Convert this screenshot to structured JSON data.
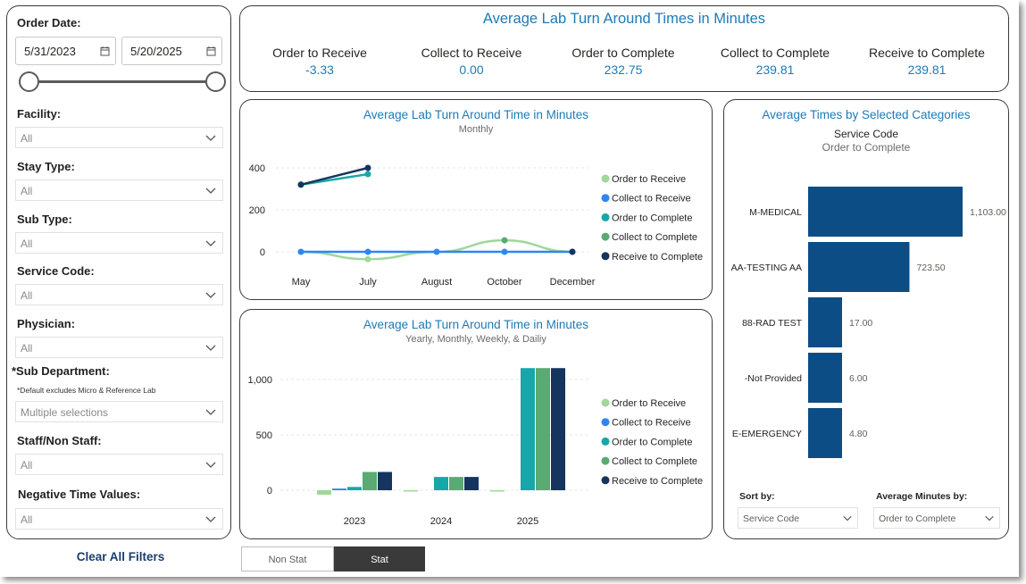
{
  "filters": {
    "order_date_label": "Order Date:",
    "start_date": "5/31/2023",
    "end_date": "5/20/2025",
    "facility_label": "Facility:",
    "facility_value": "All",
    "stay_type_label": "Stay Type:",
    "stay_type_value": "All",
    "sub_type_label": "Sub Type:",
    "sub_type_value": "All",
    "service_code_label": "Service Code:",
    "service_code_value": "All",
    "physician_label": "Physician:",
    "physician_value": "All",
    "sub_department_label": "*Sub Department:",
    "sub_department_note": "*Default excludes Micro & Reference Lab",
    "sub_department_value": "Multiple selections",
    "staff_label": "Staff/Non Staff:",
    "staff_value": "All",
    "negative_label": "Negative Time Values:",
    "negative_value": "All"
  },
  "clear_filters_label": "Clear All Filters",
  "toggle": {
    "non_stat": "Non Stat",
    "stat": "Stat"
  },
  "kpi": {
    "title": "Average Lab Turn Around Times in Minutes",
    "items": [
      {
        "label": "Order to Receive",
        "value": "-3.33"
      },
      {
        "label": "Collect to Receive",
        "value": "0.00"
      },
      {
        "label": "Order to Complete",
        "value": "232.75"
      },
      {
        "label": "Collect to Complete",
        "value": "239.81"
      },
      {
        "label": "Receive to Complete",
        "value": "239.81"
      }
    ]
  },
  "colors": {
    "order_to_receive": "#9fd89a",
    "collect_to_receive": "#2f86f0",
    "order_to_complete": "#16a7a9",
    "collect_to_complete": "#5aaa73",
    "receive_to_complete": "#15355e",
    "bar": "#0d4d85"
  },
  "chart_data": [
    {
      "type": "line",
      "title": "Average Lab Turn Around Time in Minutes",
      "subtitle": "Monthly",
      "categories": [
        "May",
        "July",
        "August",
        "October",
        "December"
      ],
      "y_ticks": [
        "400",
        "200",
        "0"
      ],
      "ylim": [
        -50,
        430
      ],
      "legend": [
        "Order to Receive",
        "Collect to Receive",
        "Order to Complete",
        "Collect to Complete",
        "Receive to Complete"
      ],
      "series": [
        {
          "name": "Order to Receive",
          "values": [
            0,
            -35,
            0,
            55,
            0
          ]
        },
        {
          "name": "Collect to Receive",
          "values": [
            0,
            0,
            0,
            0,
            0
          ]
        },
        {
          "name": "Order to Complete",
          "values": [
            320,
            370,
            null,
            null,
            null
          ]
        },
        {
          "name": "Collect to Complete",
          "values": [
            null,
            null,
            null,
            55,
            null
          ]
        },
        {
          "name": "Receive to Complete",
          "values": [
            320,
            400,
            null,
            null,
            0
          ]
        }
      ]
    },
    {
      "type": "bar",
      "title": "Average Lab Turn Around Time in Minutes",
      "subtitle": "Yearly, Monthly, Weekly, & Dailiy",
      "categories": [
        "2023",
        "2024",
        "2025"
      ],
      "y_ticks": [
        "1,000",
        "500",
        "0"
      ],
      "ylim": [
        -60,
        1200
      ],
      "legend": [
        "Order to Receive",
        "Collect to Receive",
        "Order to Complete",
        "Collect to Complete",
        "Receive to Complete"
      ],
      "series": [
        {
          "name": "Order to Receive",
          "values": [
            -40,
            -5,
            -8
          ]
        },
        {
          "name": "Collect to Receive",
          "values": [
            15,
            0,
            0
          ]
        },
        {
          "name": "Order to Complete",
          "values": [
            30,
            120,
            1103
          ]
        },
        {
          "name": "Collect to Complete",
          "values": [
            165,
            120,
            1103
          ]
        },
        {
          "name": "Receive to Complete",
          "values": [
            165,
            120,
            1103
          ]
        }
      ]
    },
    {
      "type": "bar",
      "orientation": "horizontal",
      "title": "Average Times by Selected Categories",
      "subtitle1": "Service Code",
      "subtitle2": "Order to Complete",
      "categories": [
        "M-MEDICAL",
        "AA-TESTING AA",
        "88-RAD TEST",
        "-Not Provided",
        "E-EMERGENCY"
      ],
      "values": [
        1103.0,
        723.5,
        17.0,
        6.0,
        4.8
      ],
      "value_labels": [
        "1,103.00",
        "723.50",
        "17.00",
        "6.00",
        "4.80"
      ]
    }
  ],
  "sort": {
    "sort_by_label": "Sort by:",
    "sort_by_value": "Service Code",
    "avg_by_label": "Average Minutes by:",
    "avg_by_value": "Order to Complete"
  }
}
